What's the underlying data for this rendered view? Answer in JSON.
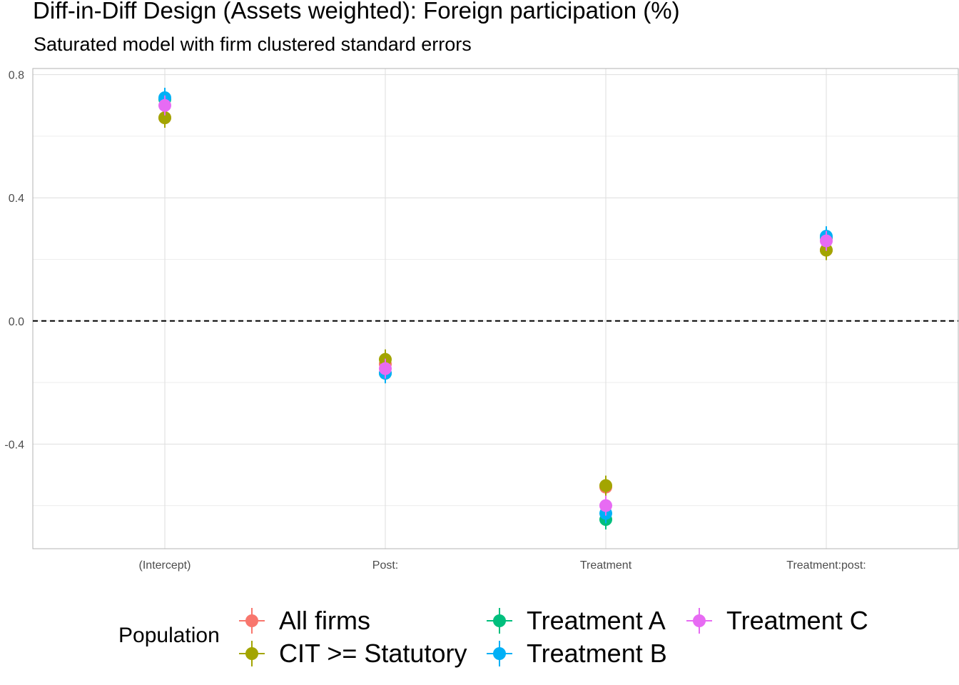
{
  "chart_data": {
    "type": "scatter",
    "title": "Diff-in-Diff Design (Assets weighted): Foreign participation (%)",
    "subtitle": "Saturated model with firm clustered standard errors",
    "xlabel": "",
    "ylabel": "",
    "categories": [
      "(Intercept)",
      "Post:",
      "Treatment",
      "Treatment:post:"
    ],
    "y_ticks": [
      0.8,
      0.4,
      0.0,
      -0.4
    ],
    "y_tick_labels": [
      "0.8",
      "0.4",
      "0.0",
      "-0.4"
    ],
    "ylim": [
      -0.74,
      0.82
    ],
    "reference_line": {
      "y": 0.0,
      "style": "dashed"
    },
    "grid": true,
    "legend": {
      "title": "Population",
      "position": "bottom"
    },
    "series": [
      {
        "name": "All firms",
        "color": "#F8766D",
        "values": [
          0.66,
          -0.14,
          -0.54,
          0.23
        ]
      },
      {
        "name": "CIT >= Statutory",
        "color": "#A3A500",
        "values": [
          0.66,
          -0.125,
          -0.535,
          0.23
        ]
      },
      {
        "name": "Treatment A",
        "color": "#00BF7D",
        "values": [
          0.72,
          -0.17,
          -0.645,
          0.27
        ]
      },
      {
        "name": "Treatment B",
        "color": "#00B0F6",
        "values": [
          0.725,
          -0.17,
          -0.625,
          0.275
        ]
      },
      {
        "name": "Treatment C",
        "color": "#E76BF3",
        "values": [
          0.7,
          -0.155,
          -0.6,
          0.26
        ]
      }
    ]
  }
}
